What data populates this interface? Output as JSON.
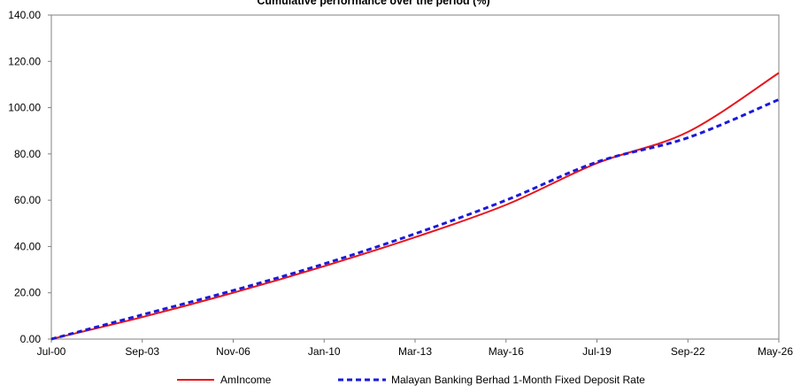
{
  "chart_data": {
    "type": "line",
    "title": "Cumulative performance over the period (%)",
    "xlabel": "",
    "ylabel": "",
    "ylim": [
      0,
      140
    ],
    "yticks": [
      "0.00",
      "20.00",
      "40.00",
      "60.00",
      "80.00",
      "100.00",
      "120.00",
      "140.00"
    ],
    "xticks": [
      "Jul-00",
      "Sep-03",
      "Nov-06",
      "Jan-10",
      "Mar-13",
      "May-16",
      "Jul-19",
      "Sep-22",
      "May-26"
    ],
    "grid": false,
    "legend_position": "bottom",
    "x": [
      "Jul-00",
      "Sep-03",
      "Nov-06",
      "Jan-10",
      "Mar-13",
      "May-16",
      "Jul-19",
      "Sep-22",
      "May-26"
    ],
    "series": [
      {
        "name": "AmIncome",
        "color": "#e8141b",
        "style": "solid",
        "values": [
          0,
          9.5,
          20,
          31.5,
          44,
          58,
          76,
          89.5,
          115
        ]
      },
      {
        "name": "Malayan Banking Berhad 1-Month Fixed Deposit Rate",
        "color": "#1a1adb",
        "style": "dashed",
        "values": [
          0,
          10.5,
          21,
          32.5,
          45.5,
          60,
          76.5,
          87,
          103.5
        ]
      }
    ]
  }
}
